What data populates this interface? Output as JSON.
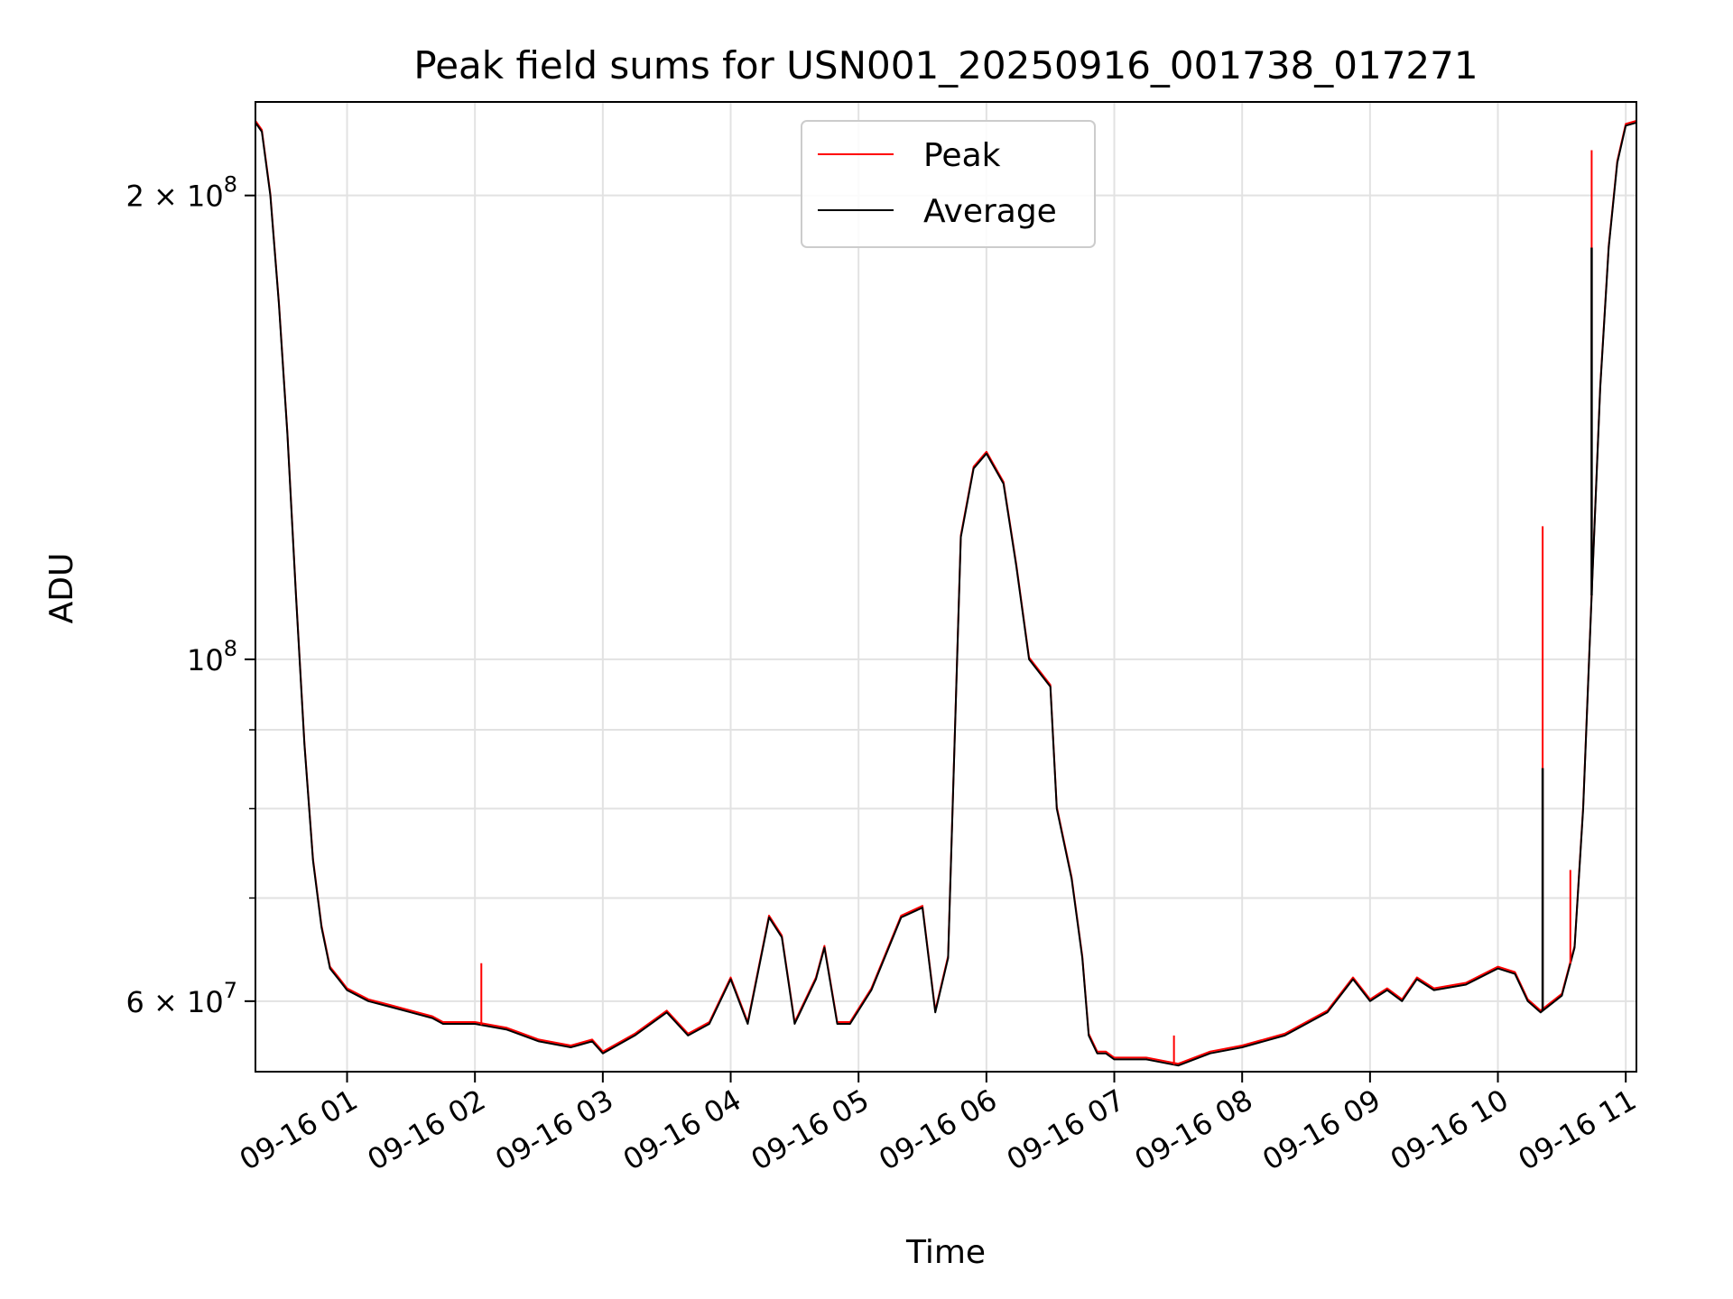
{
  "chart_data": {
    "type": "line",
    "title": "Peak field sums for USN001_20250916_001738_017271",
    "xlabel": "Time",
    "ylabel": "ADU",
    "yscale": "log",
    "xlim": [
      "09-16 00:17",
      "09-16 11:05"
    ],
    "ylim": [
      54000000,
      230000000
    ],
    "grid": true,
    "legend_position": "top-center",
    "x_ticks": [
      {
        "value": "09-16 01:00",
        "label": "09-16 01"
      },
      {
        "value": "09-16 02:00",
        "label": "09-16 02"
      },
      {
        "value": "09-16 03:00",
        "label": "09-16 03"
      },
      {
        "value": "09-16 04:00",
        "label": "09-16 04"
      },
      {
        "value": "09-16 05:00",
        "label": "09-16 05"
      },
      {
        "value": "09-16 06:00",
        "label": "09-16 06"
      },
      {
        "value": "09-16 07:00",
        "label": "09-16 07"
      },
      {
        "value": "09-16 08:00",
        "label": "09-16 08"
      },
      {
        "value": "09-16 09:00",
        "label": "09-16 09"
      },
      {
        "value": "09-16 10:00",
        "label": "09-16 10"
      },
      {
        "value": "09-16 11:00",
        "label": "09-16 11"
      }
    ],
    "y_ticks": [
      {
        "value": 60000000,
        "mantissa": "6",
        "exponent": "7"
      },
      {
        "value": 100000000,
        "mantissa": "",
        "exponent": "8"
      },
      {
        "value": 200000000,
        "mantissa": "2",
        "exponent": "8"
      }
    ],
    "y_minor_ticks": [
      70000000,
      80000000,
      90000000
    ],
    "series": [
      {
        "name": "Peak",
        "color": "#ff0000"
      },
      {
        "name": "Average",
        "color": "#000000"
      }
    ],
    "x": [
      "09-16 00:17",
      "09-16 00:20",
      "09-16 00:24",
      "09-16 00:28",
      "09-16 00:32",
      "09-16 00:36",
      "09-16 00:40",
      "09-16 00:44",
      "09-16 00:48",
      "09-16 00:52",
      "09-16 00:56",
      "09-16 01:00",
      "09-16 01:10",
      "09-16 01:20",
      "09-16 01:30",
      "09-16 01:40",
      "09-16 01:45",
      "09-16 02:00",
      "09-16 02:15",
      "09-16 02:30",
      "09-16 02:45",
      "09-16 02:55",
      "09-16 03:00",
      "09-16 03:15",
      "09-16 03:30",
      "09-16 03:40",
      "09-16 03:50",
      "09-16 04:00",
      "09-16 04:08",
      "09-16 04:18",
      "09-16 04:24",
      "09-16 04:30",
      "09-16 04:40",
      "09-16 04:44",
      "09-16 04:50",
      "09-16 04:56",
      "09-16 05:06",
      "09-16 05:20",
      "09-16 05:30",
      "09-16 05:36",
      "09-16 05:42",
      "09-16 05:48",
      "09-16 05:54",
      "09-16 06:00",
      "09-16 06:08",
      "09-16 06:14",
      "09-16 06:20",
      "09-16 06:30",
      "09-16 06:33",
      "09-16 06:40",
      "09-16 06:45",
      "09-16 06:48",
      "09-16 06:52",
      "09-16 06:56",
      "09-16 07:00",
      "09-16 07:15",
      "09-16 07:30",
      "09-16 07:45",
      "09-16 08:00",
      "09-16 08:20",
      "09-16 08:40",
      "09-16 08:52",
      "09-16 09:00",
      "09-16 09:08",
      "09-16 09:15",
      "09-16 09:22",
      "09-16 09:30",
      "09-16 09:45",
      "09-16 10:00",
      "09-16 10:08",
      "09-16 10:14",
      "09-16 10:20",
      "09-16 10:30",
      "09-16 10:36",
      "09-16 10:40",
      "09-16 10:44",
      "09-16 10:48",
      "09-16 10:52",
      "09-16 10:56",
      "09-16 11:00",
      "09-16 11:05"
    ],
    "values": [
      223000000,
      220000000,
      200000000,
      170000000,
      140000000,
      110000000,
      88000000,
      74000000,
      67000000,
      63000000,
      62000000,
      61000000,
      60000000,
      59500000,
      59000000,
      58500000,
      58000000,
      58000000,
      57500000,
      56500000,
      56000000,
      56500000,
      55500000,
      57000000,
      59000000,
      57000000,
      58000000,
      62000000,
      58000000,
      68000000,
      66000000,
      58000000,
      62000000,
      65000000,
      58000000,
      58000000,
      61000000,
      68000000,
      69000000,
      59000000,
      64000000,
      120000000,
      133000000,
      136000000,
      130000000,
      115000000,
      100000000,
      96000000,
      80000000,
      72000000,
      64000000,
      57000000,
      55500000,
      55500000,
      55000000,
      55000000,
      54500000,
      55500000,
      56000000,
      57000000,
      59000000,
      62000000,
      60000000,
      61000000,
      60000000,
      62000000,
      61000000,
      61500000,
      63000000,
      62500000,
      60000000,
      59000000,
      60500000,
      65000000,
      80000000,
      110000000,
      150000000,
      185000000,
      210000000,
      222000000,
      223000000
    ],
    "peak_spikes": [
      {
        "x": "09-16 02:03",
        "value": 63500000
      },
      {
        "x": "09-16 07:28",
        "value": 57000000
      },
      {
        "x": "09-16 10:21",
        "value": 122000000
      },
      {
        "x": "09-16 10:34",
        "value": 73000000
      },
      {
        "x": "09-16 10:44",
        "value": 214000000
      }
    ],
    "average_dips": [
      {
        "x": "09-16 10:21",
        "value": 85000000
      },
      {
        "x": "09-16 10:44",
        "value": 185000000
      }
    ]
  }
}
